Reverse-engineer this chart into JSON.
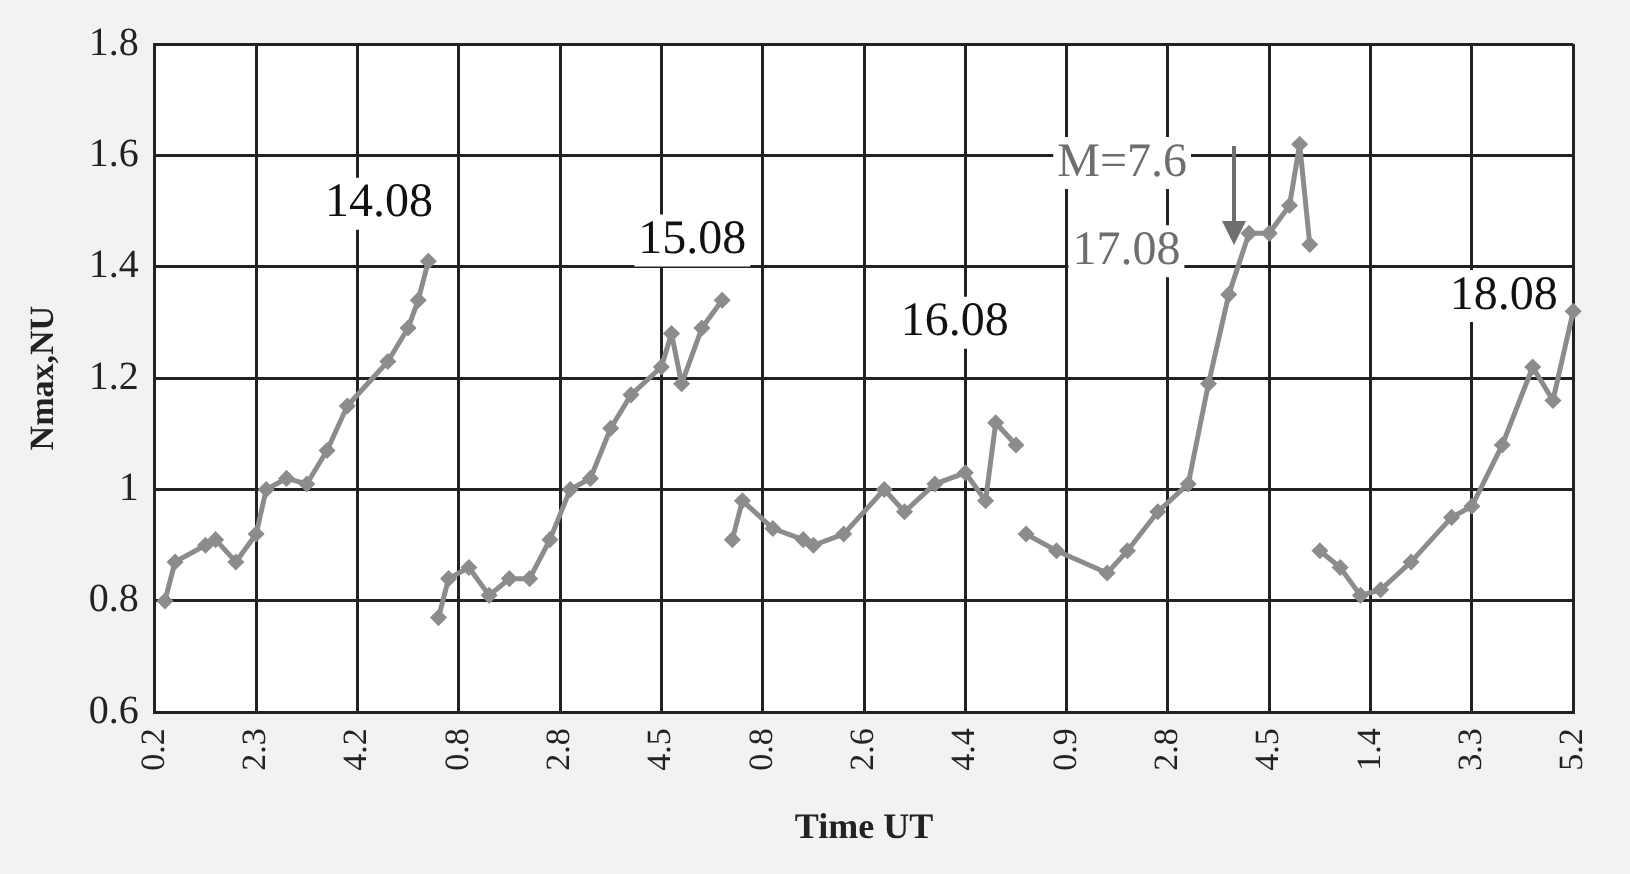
{
  "chart_data": {
    "type": "line",
    "xlabel": "Time UT",
    "ylabel": "Nmax,NU",
    "categories": [
      "0.2",
      null,
      null,
      null,
      null,
      null,
      null,
      null,
      null,
      null,
      "2.3",
      null,
      null,
      null,
      null,
      null,
      null,
      null,
      null,
      null,
      "4.2",
      null,
      null,
      null,
      null,
      null,
      null,
      null,
      null,
      null,
      "0.8",
      null,
      null,
      null,
      null,
      null,
      null,
      null,
      null,
      null,
      "2.8",
      null,
      null,
      null,
      null,
      null,
      null,
      null,
      null,
      null,
      "4.5",
      null,
      null,
      null,
      null,
      null,
      null,
      null,
      null,
      null,
      "0.8",
      null,
      null,
      null,
      null,
      null,
      null,
      null,
      null,
      null,
      "2.6",
      null,
      null,
      null,
      null,
      null,
      null,
      null,
      null,
      null,
      "4.4",
      null,
      null,
      null,
      null,
      null,
      null,
      null,
      null,
      null,
      "0.9",
      null,
      null,
      null,
      null,
      null,
      null,
      null,
      null,
      null,
      "2.8",
      null,
      null,
      null,
      null,
      null,
      null,
      null,
      null,
      null,
      "4.5",
      null,
      null,
      null,
      null,
      null,
      null,
      null,
      null,
      null,
      "1.4",
      null,
      null,
      null,
      null,
      null,
      null,
      null,
      null,
      null,
      "3.3",
      null,
      null,
      null,
      null,
      null,
      null,
      null,
      null,
      null,
      "5.2"
    ],
    "series": [
      {
        "color": "#8c8c8c",
        "values": [
          null,
          0.8,
          0.87,
          null,
          null,
          0.9,
          0.91,
          null,
          0.87,
          null,
          0.92,
          1.0,
          null,
          1.02,
          null,
          1.01,
          null,
          1.07,
          null,
          1.15,
          null,
          null,
          null,
          1.23,
          null,
          1.29,
          1.34,
          1.41,
          null,
          null,
          null,
          null,
          null,
          null,
          null,
          null,
          null,
          null,
          null,
          null,
          null,
          null,
          null,
          null,
          null,
          null,
          null,
          null,
          null,
          null,
          null,
          null,
          null,
          null,
          null,
          null,
          null,
          null,
          null,
          null,
          null,
          null,
          null,
          null,
          null,
          null,
          null,
          null,
          null,
          null,
          null,
          null,
          null,
          null,
          null,
          null,
          null,
          null,
          null,
          null,
          null,
          null,
          null,
          null,
          null,
          null,
          null,
          null,
          null,
          null,
          null,
          null,
          null,
          null,
          null,
          null,
          null,
          null,
          null,
          null,
          null,
          null,
          null,
          null,
          null,
          null,
          null,
          null,
          null,
          null,
          null,
          null,
          null,
          null,
          null,
          null,
          null,
          null,
          null,
          null,
          null,
          null,
          null,
          null,
          null,
          null,
          null,
          null,
          null,
          null,
          null,
          null,
          null,
          null,
          null,
          null,
          null,
          null,
          null,
          null,
          null
        ]
      },
      {
        "color": "#8c8c8c",
        "values": [
          null,
          null,
          null,
          null,
          null,
          null,
          null,
          null,
          null,
          null,
          null,
          null,
          null,
          null,
          null,
          null,
          null,
          null,
          null,
          null,
          null,
          null,
          null,
          null,
          null,
          null,
          null,
          null,
          0.77,
          0.84,
          null,
          0.86,
          null,
          0.81,
          null,
          0.84,
          null,
          0.84,
          null,
          0.91,
          null,
          1.0,
          null,
          1.02,
          null,
          1.11,
          null,
          1.17,
          null,
          null,
          1.22,
          1.28,
          1.19,
          null,
          1.29,
          null,
          1.34,
          null,
          null,
          null,
          null,
          null,
          null,
          null,
          null,
          null,
          null,
          null,
          null,
          null,
          null,
          null,
          null,
          null,
          null,
          null,
          null,
          null,
          null,
          null,
          null,
          null,
          null,
          null,
          null,
          null,
          null,
          null,
          null,
          null,
          null,
          null,
          null,
          null,
          null,
          null,
          null,
          null,
          null,
          null,
          null,
          null,
          null,
          null,
          null,
          null,
          null,
          null,
          null,
          null,
          null,
          null,
          null,
          null,
          null,
          null,
          null,
          null,
          null,
          null,
          null,
          null,
          null,
          null,
          null,
          null,
          null,
          null,
          null,
          null,
          null,
          null,
          null,
          null,
          null,
          null,
          null,
          null,
          null,
          null,
          null
        ]
      },
      {
        "color": "#8c8c8c",
        "values": [
          null,
          null,
          null,
          null,
          null,
          null,
          null,
          null,
          null,
          null,
          null,
          null,
          null,
          null,
          null,
          null,
          null,
          null,
          null,
          null,
          null,
          null,
          null,
          null,
          null,
          null,
          null,
          null,
          null,
          null,
          null,
          null,
          null,
          null,
          null,
          null,
          null,
          null,
          null,
          null,
          null,
          null,
          null,
          null,
          null,
          null,
          null,
          null,
          null,
          null,
          null,
          null,
          null,
          null,
          null,
          null,
          null,
          0.91,
          0.98,
          null,
          null,
          0.93,
          null,
          null,
          0.91,
          0.9,
          null,
          null,
          0.92,
          null,
          null,
          null,
          1.0,
          null,
          0.96,
          null,
          null,
          1.01,
          null,
          null,
          1.03,
          null,
          0.98,
          1.12,
          null,
          1.08,
          null,
          null,
          null,
          null,
          null,
          null,
          null,
          null,
          null,
          null,
          null,
          null,
          null,
          null,
          null,
          null,
          null,
          null,
          null,
          null,
          null,
          null,
          null,
          null,
          null,
          null,
          null,
          null,
          null,
          null,
          null,
          null,
          null,
          null,
          null,
          null,
          null,
          null,
          null,
          null,
          null,
          null,
          null,
          null,
          null,
          null,
          null,
          null,
          null,
          null,
          null,
          null,
          null,
          null,
          null
        ]
      },
      {
        "color": "#8c8c8c",
        "values": [
          null,
          null,
          null,
          null,
          null,
          null,
          null,
          null,
          null,
          null,
          null,
          null,
          null,
          null,
          null,
          null,
          null,
          null,
          null,
          null,
          null,
          null,
          null,
          null,
          null,
          null,
          null,
          null,
          null,
          null,
          null,
          null,
          null,
          null,
          null,
          null,
          null,
          null,
          null,
          null,
          null,
          null,
          null,
          null,
          null,
          null,
          null,
          null,
          null,
          null,
          null,
          null,
          null,
          null,
          null,
          null,
          null,
          null,
          null,
          null,
          null,
          null,
          null,
          null,
          null,
          null,
          null,
          null,
          null,
          null,
          null,
          null,
          null,
          null,
          null,
          null,
          null,
          null,
          null,
          null,
          null,
          null,
          null,
          null,
          null,
          null,
          0.92,
          null,
          null,
          0.89,
          null,
          null,
          null,
          null,
          0.85,
          null,
          0.89,
          null,
          null,
          0.96,
          null,
          null,
          1.01,
          null,
          1.19,
          null,
          1.35,
          null,
          1.46,
          null,
          1.46,
          null,
          1.51,
          1.62,
          1.44,
          null,
          null,
          null,
          null,
          null,
          null,
          null,
          null,
          null,
          null,
          null,
          null,
          null,
          null,
          null,
          null,
          null,
          null,
          null,
          null,
          null,
          null,
          null,
          null,
          null,
          null
        ]
      },
      {
        "color": "#8c8c8c",
        "values": [
          null,
          null,
          null,
          null,
          null,
          null,
          null,
          null,
          null,
          null,
          null,
          null,
          null,
          null,
          null,
          null,
          null,
          null,
          null,
          null,
          null,
          null,
          null,
          null,
          null,
          null,
          null,
          null,
          null,
          null,
          null,
          null,
          null,
          null,
          null,
          null,
          null,
          null,
          null,
          null,
          null,
          null,
          null,
          null,
          null,
          null,
          null,
          null,
          null,
          null,
          null,
          null,
          null,
          null,
          null,
          null,
          null,
          null,
          null,
          null,
          null,
          null,
          null,
          null,
          null,
          null,
          null,
          null,
          null,
          null,
          null,
          null,
          null,
          null,
          null,
          null,
          null,
          null,
          null,
          null,
          null,
          null,
          null,
          null,
          null,
          null,
          null,
          null,
          null,
          null,
          null,
          null,
          null,
          null,
          null,
          null,
          null,
          null,
          null,
          null,
          null,
          null,
          null,
          null,
          null,
          null,
          null,
          null,
          null,
          null,
          null,
          null,
          null,
          null,
          null,
          0.89,
          null,
          0.86,
          null,
          0.81,
          null,
          0.82,
          null,
          null,
          0.87,
          null,
          null,
          null,
          0.95,
          null,
          0.97,
          null,
          null,
          1.08,
          null,
          null,
          1.22,
          null,
          1.16,
          null,
          1.32
        ]
      }
    ],
    "annotations": [
      "14.08",
      "15.08",
      "16.08",
      "17.08",
      "18.08",
      "M=7.6"
    ],
    "ylim": [
      0.6,
      1.8
    ],
    "yticks": [
      0.6,
      0.8,
      1,
      1.2,
      1.4,
      1.6,
      1.8
    ],
    "grid": true,
    "legend": false,
    "marker": "diamond",
    "line_style": "solid"
  }
}
